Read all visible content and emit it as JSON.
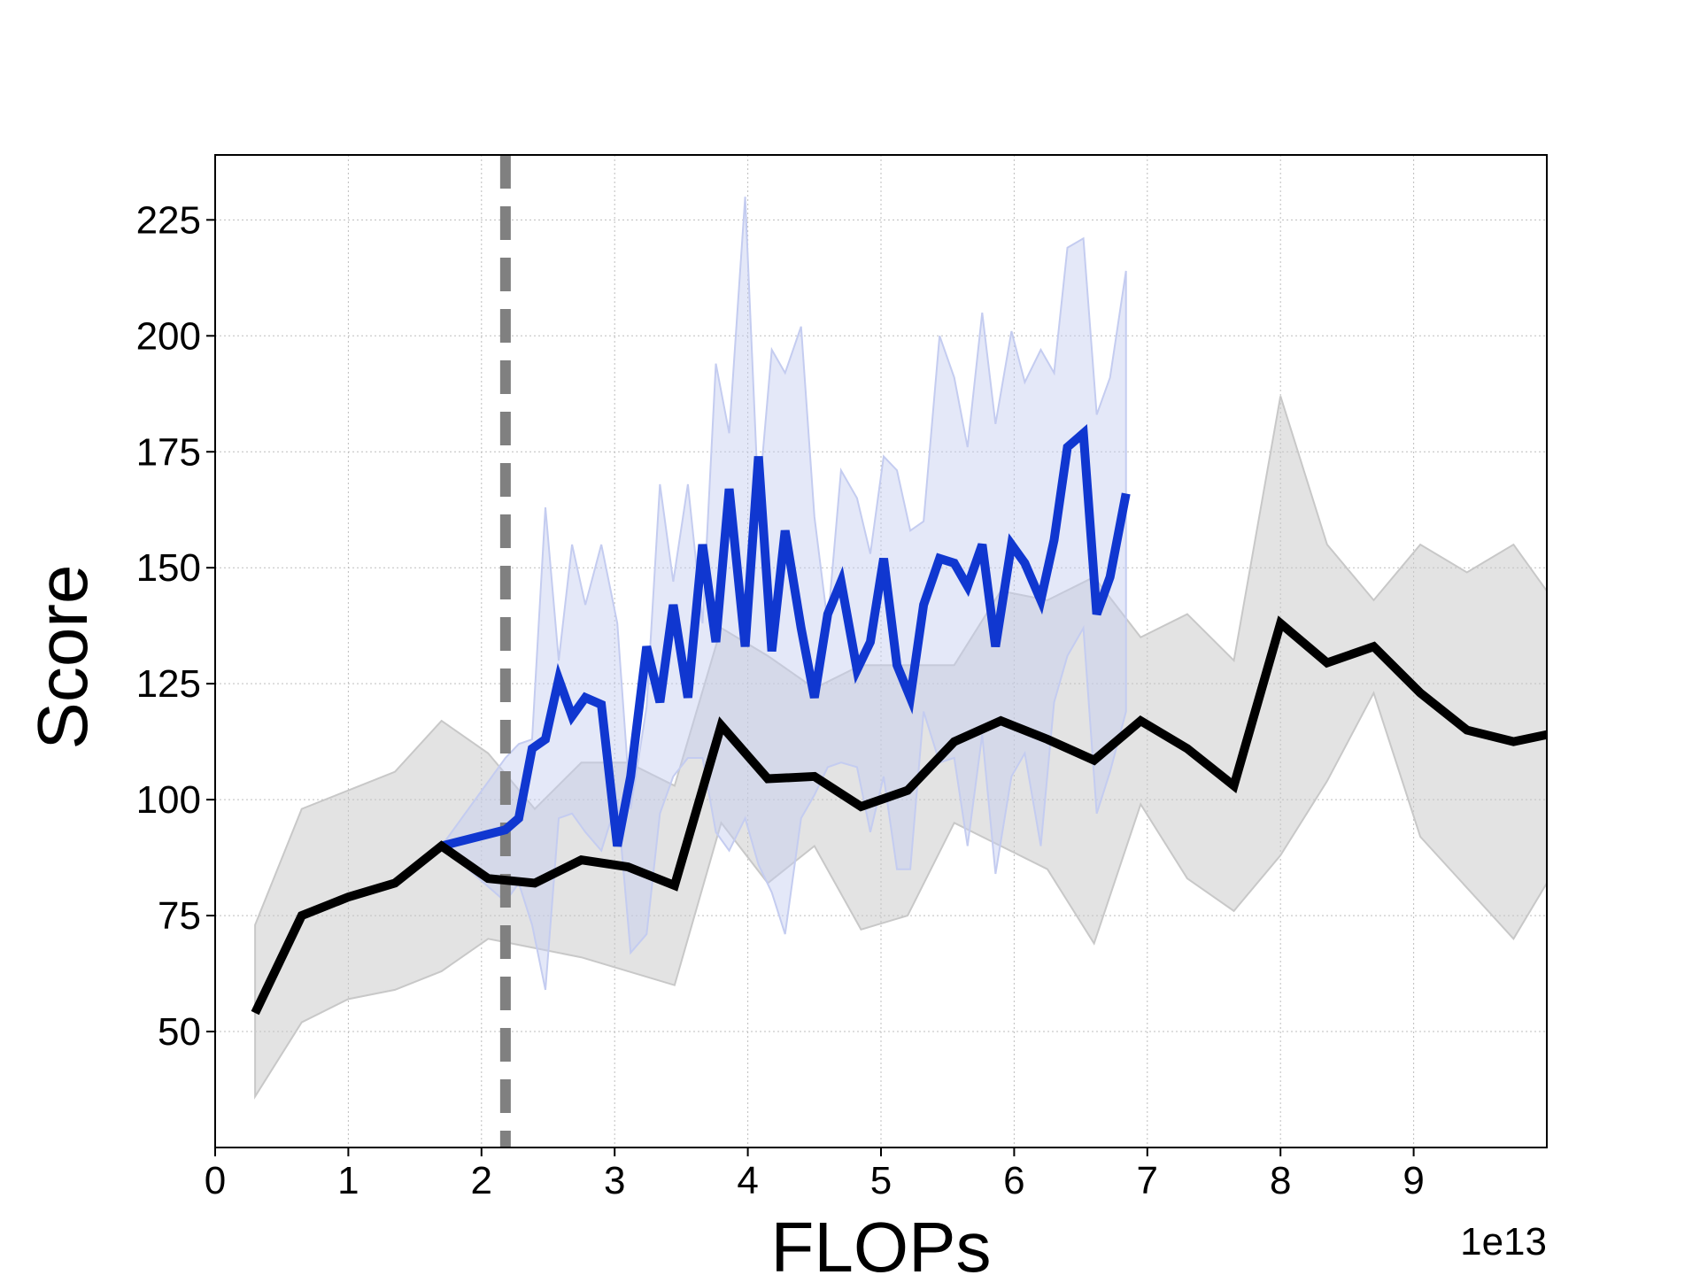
{
  "chart_data": {
    "type": "line",
    "xlabel": "FLOPs",
    "ylabel": "Score",
    "x_offset_label": "1e13",
    "xlim": [
      0,
      10.0
    ],
    "ylim": [
      25,
      239
    ],
    "x_ticks": [
      0,
      1,
      2,
      3,
      4,
      5,
      6,
      7,
      8,
      9
    ],
    "y_ticks": [
      50,
      75,
      100,
      125,
      150,
      175,
      200,
      225
    ],
    "grid": true,
    "legend": "none",
    "vline": {
      "x": 2.18,
      "style": "dashed",
      "color": "#808080"
    },
    "series": [
      {
        "color": "#000000",
        "band_color": "#c8c8c8",
        "x": [
          0.3,
          0.65,
          1.0,
          1.35,
          1.7,
          2.05,
          2.4,
          2.75,
          3.1,
          3.45,
          3.8,
          4.15,
          4.5,
          4.85,
          5.2,
          5.55,
          5.9,
          6.25,
          6.6,
          6.95,
          7.3,
          7.65,
          8.0,
          8.35,
          8.7,
          9.05,
          9.4,
          9.75,
          10.0
        ],
        "y": [
          54,
          75,
          79,
          82,
          90,
          83,
          82,
          87,
          85.5,
          81.5,
          116,
          104.5,
          105,
          98.5,
          102,
          112.5,
          117,
          113,
          108.5,
          117,
          111,
          103,
          138,
          129.5,
          133,
          123,
          115,
          112.5,
          114
        ],
        "lower": [
          36,
          52,
          57,
          59,
          63,
          70,
          68,
          66,
          63,
          60,
          95,
          82,
          90,
          72,
          75,
          95,
          90,
          85,
          69,
          99,
          83,
          76,
          88,
          104,
          123,
          92,
          81,
          70,
          82
        ],
        "upper": [
          73,
          98,
          102,
          106,
          117,
          110,
          98,
          108,
          108,
          103,
          137,
          131,
          124,
          129,
          129,
          129,
          145,
          143,
          148,
          135,
          140,
          130,
          187,
          155,
          143,
          155,
          149,
          155,
          145
        ]
      },
      {
        "color": "#1037d0",
        "band_color": "#c4ccf0",
        "x": [
          1.7,
          2.18,
          2.28,
          2.38,
          2.48,
          2.58,
          2.68,
          2.78,
          2.9,
          3.02,
          3.12,
          3.24,
          3.34,
          3.44,
          3.55,
          3.66,
          3.76,
          3.86,
          3.98,
          4.08,
          4.18,
          4.28,
          4.4,
          4.5,
          4.6,
          4.7,
          4.82,
          4.92,
          5.02,
          5.12,
          5.22,
          5.32,
          5.44,
          5.55,
          5.65,
          5.76,
          5.86,
          5.98,
          6.08,
          6.2,
          6.3,
          6.4,
          6.52,
          6.62,
          6.72,
          6.84
        ],
        "y": [
          90,
          93.5,
          96,
          111,
          113,
          126,
          118,
          122,
          120.5,
          90,
          105,
          133,
          121,
          142,
          122,
          155,
          134,
          167,
          133,
          174,
          132,
          158,
          137,
          122,
          140,
          147,
          128,
          134,
          152,
          129,
          122,
          142,
          152,
          151,
          146,
          155,
          133,
          155,
          151,
          143,
          156,
          176,
          179,
          140,
          148,
          166
        ],
        "lower": [
          90,
          78,
          82,
          73,
          59,
          96,
          97,
          93,
          89,
          100,
          67,
          71,
          97,
          105,
          109,
          109,
          93,
          89,
          96,
          86,
          80,
          71,
          96,
          101,
          107,
          108,
          107,
          93,
          105,
          85,
          85,
          119,
          108,
          109,
          90,
          114,
          84,
          105,
          110,
          90,
          121,
          131,
          137,
          97,
          106,
          119
        ],
        "upper": [
          90,
          109,
          112,
          113,
          163,
          130,
          155,
          142,
          155,
          138,
          98,
          120,
          168,
          147,
          168,
          138,
          194,
          179,
          230,
          164,
          197,
          192,
          202,
          161,
          138,
          171,
          165,
          153,
          174,
          171,
          158,
          160,
          200,
          191,
          176,
          205,
          181,
          201,
          190,
          197,
          192,
          219,
          221,
          183,
          191,
          214
        ]
      }
    ]
  }
}
